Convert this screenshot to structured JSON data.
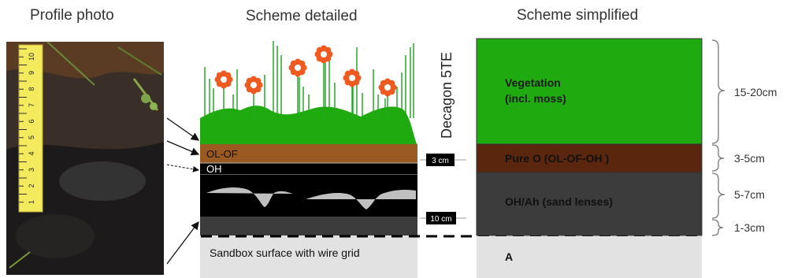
{
  "titles": {
    "profile_photo": "Profile photo",
    "scheme_detailed": "Scheme detailed",
    "scheme_simplified": "Scheme simplified"
  },
  "detailed": {
    "sensor_label": "Decagon 5TE",
    "layer_ol_of": "OL-OF",
    "layer_oh": "OH",
    "sandbox_label": "Sandbox surface with wire grid",
    "tag_3cm": "3 cm",
    "tag_10cm": "10 cm"
  },
  "simplified": {
    "vegetation_line1": "Vegetation",
    "vegetation_line2": "(incl. moss)",
    "pure_o": "Pure O (OL-OF-OH )",
    "oh_ah": "OH/Ah (sand lenses)",
    "a": "A"
  },
  "brackets": {
    "b1": "15-20cm",
    "b2": "3-5cm",
    "b3": "5-7cm",
    "b4": "1-3cm"
  },
  "ruler_numbers": [
    "10",
    "9",
    "8",
    "7",
    "6",
    "5",
    "4",
    "3",
    "2",
    "1"
  ],
  "colors": {
    "vegetation": "#1faa10",
    "pure_o": "#5a260e",
    "oh_ah": "#3c3c3c",
    "sand": "#e2e2e2",
    "litter": "#9a5a22",
    "flower": "#ef5a20"
  }
}
